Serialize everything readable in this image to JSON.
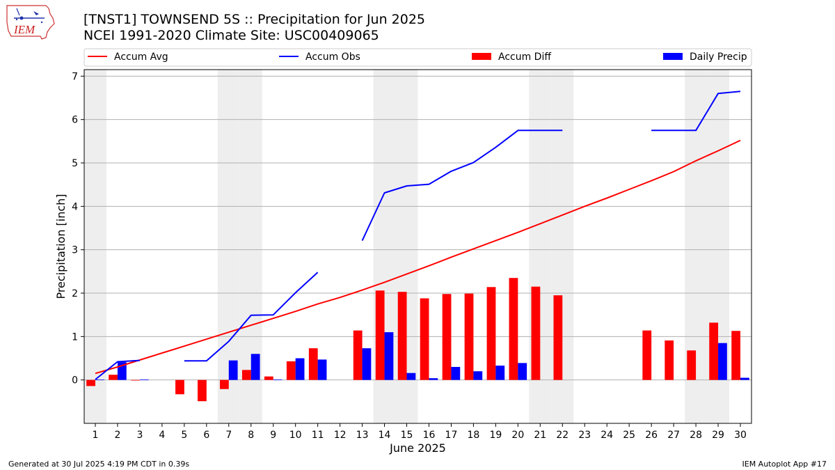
{
  "title": "[TNST1] TOWNSEND 5S :: Precipitation for Jun 2025",
  "subtitle": "NCEI 1991-2020 Climate Site: USC00409065",
  "logo_text": "IEM",
  "footer_left": "Generated at 30 Jul 2025 4:19 PM CDT in 0.39s",
  "footer_right": "IEM Autoplot App #17",
  "colors": {
    "avg": "#ff0000",
    "obs": "#0000ff",
    "diff": "#ff0000",
    "daily": "#0000ff",
    "weekend": "#eeeeee",
    "grid": "#b0b0b0"
  },
  "chart_data": {
    "type": "bar",
    "xlabel": "June 2025",
    "ylabel": "Precipitation [inch]",
    "ylim": [
      -1.0,
      7.15
    ],
    "yticks": [
      0,
      1,
      2,
      3,
      4,
      5,
      6,
      7
    ],
    "days": [
      1,
      2,
      3,
      4,
      5,
      6,
      7,
      8,
      9,
      10,
      11,
      12,
      13,
      14,
      15,
      16,
      17,
      18,
      19,
      20,
      21,
      22,
      23,
      24,
      25,
      26,
      27,
      28,
      29,
      30
    ],
    "weekend_days": [
      1,
      7,
      8,
      14,
      15,
      21,
      22,
      28,
      29
    ],
    "grid": "horizontal",
    "legend_position": "top",
    "series": [
      {
        "name": "Accum Avg",
        "kind": "line",
        "values": [
          0.15,
          0.3,
          0.46,
          0.62,
          0.78,
          0.94,
          1.1,
          1.26,
          1.42,
          1.58,
          1.75,
          1.9,
          2.07,
          2.25,
          2.44,
          2.63,
          2.83,
          3.02,
          3.21,
          3.4,
          3.6,
          3.8,
          4.0,
          4.19,
          4.39,
          4.59,
          4.8,
          5.05,
          5.28,
          5.52
        ]
      },
      {
        "name": "Accum Obs",
        "kind": "line",
        "values": [
          0.01,
          0.42,
          0.45,
          null,
          0.44,
          0.44,
          0.89,
          1.49,
          1.5,
          2.01,
          2.48,
          null,
          3.21,
          4.31,
          4.47,
          4.51,
          4.81,
          5.01,
          5.36,
          5.75,
          5.75,
          5.75,
          null,
          null,
          null,
          5.75,
          5.75,
          5.75,
          6.6,
          6.65
        ]
      },
      {
        "name": "Accum Diff",
        "kind": "bar",
        "values": [
          -0.14,
          0.12,
          -0.01,
          null,
          -0.33,
          -0.49,
          -0.21,
          0.23,
          0.08,
          0.43,
          0.73,
          null,
          1.14,
          2.06,
          2.03,
          1.88,
          1.98,
          1.99,
          2.14,
          2.35,
          2.15,
          1.95,
          null,
          null,
          null,
          1.14,
          0.91,
          0.68,
          1.32,
          1.13
        ]
      },
      {
        "name": "Daily Precip",
        "kind": "bar",
        "values": [
          0.01,
          0.41,
          0.01,
          null,
          null,
          null,
          0.45,
          0.6,
          0.01,
          0.5,
          0.47,
          null,
          0.73,
          1.1,
          0.16,
          0.04,
          0.3,
          0.2,
          0.33,
          0.39,
          null,
          null,
          null,
          null,
          null,
          null,
          null,
          null,
          0.85,
          0.05
        ]
      }
    ]
  }
}
